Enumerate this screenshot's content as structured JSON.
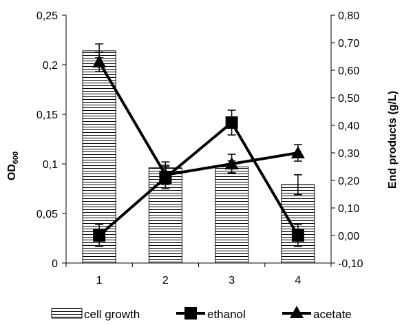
{
  "chart_data": {
    "type": "bar",
    "categories": [
      "1",
      "2",
      "3",
      "4"
    ],
    "xticks": [
      "1",
      "2",
      "3",
      "4"
    ],
    "left_axis": {
      "label_main": "OD",
      "label_sub": "600",
      "ylim": [
        0,
        0.25
      ],
      "ticks": [
        0,
        0.05,
        0.1,
        0.15,
        0.2,
        0.25
      ],
      "tick_labels": [
        "0",
        "0,05",
        "0,1",
        "0,15",
        "0,2",
        "0,25"
      ]
    },
    "right_axis": {
      "label": "End products (g/L)",
      "ylim": [
        -0.1,
        0.8
      ],
      "ticks": [
        -0.1,
        0,
        0.1,
        0.2,
        0.3,
        0.4,
        0.5,
        0.6,
        0.7,
        0.8
      ],
      "tick_labels": [
        "-0,10",
        "0,00",
        "0,10",
        "0,20",
        "0,30",
        "0,40",
        "0,50",
        "0,60",
        "0,70",
        "0,80"
      ]
    },
    "series": [
      {
        "name": "cell growth",
        "kind": "bar",
        "axis": "left",
        "pattern": "horizontal-lines",
        "values": [
          0.214,
          0.096,
          0.097,
          0.079
        ],
        "errors": [
          0.007,
          0.006,
          0.006,
          0.01
        ]
      },
      {
        "name": "ethanol",
        "kind": "line",
        "axis": "right",
        "marker": "square",
        "values": [
          0.0,
          0.21,
          0.41,
          0.0
        ],
        "errors": [
          0.04,
          0.04,
          0.045,
          0.04
        ]
      },
      {
        "name": "acetate",
        "kind": "line",
        "axis": "right",
        "marker": "triangle",
        "values": [
          0.63,
          0.22,
          0.26,
          0.3
        ],
        "errors": [
          0.035,
          0.035,
          0.035,
          0.03
        ]
      }
    ],
    "legend_position": "bottom",
    "grid": false,
    "line_color": "#000000",
    "bar_fill": "#ffffff"
  }
}
